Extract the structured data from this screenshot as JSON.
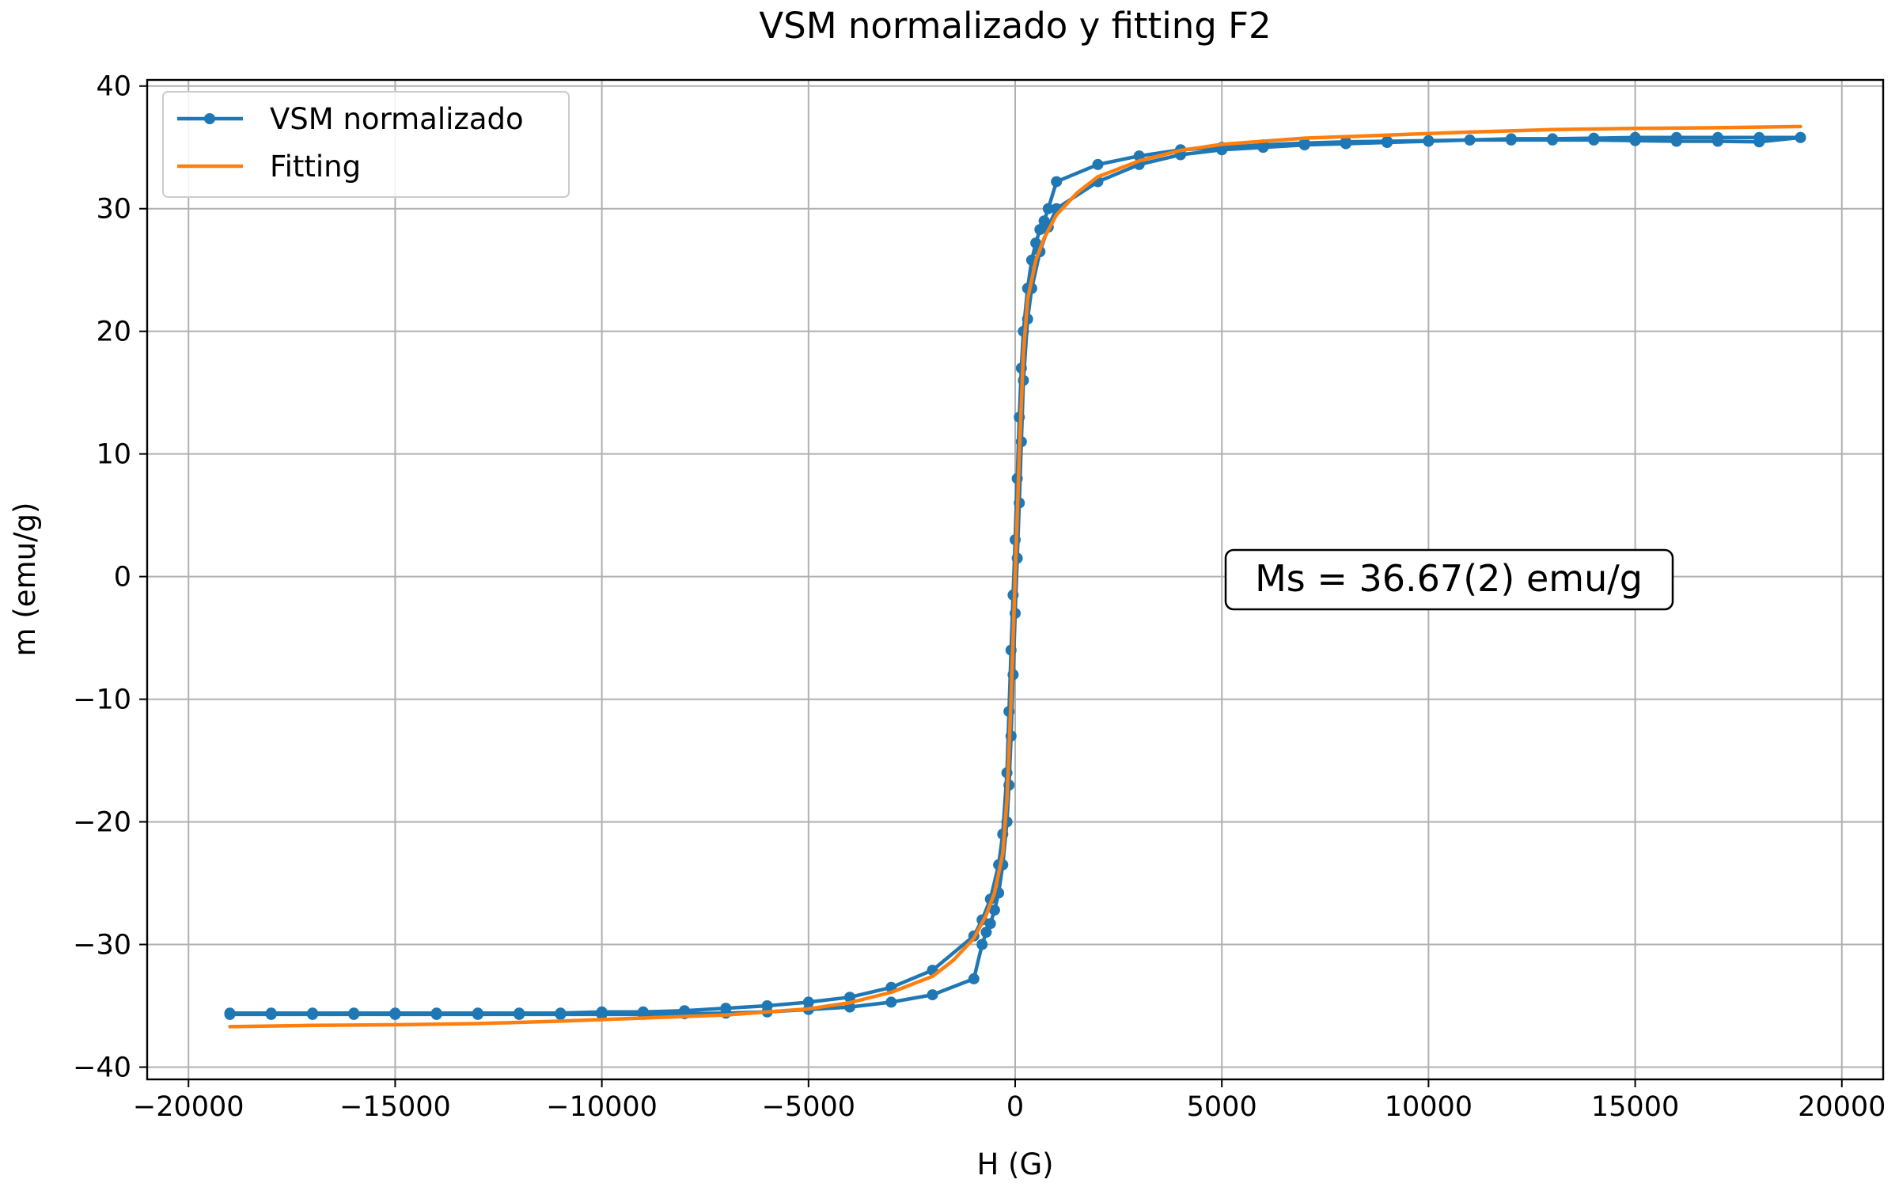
{
  "chart_data": {
    "type": "line",
    "title": "VSM normalizado y fitting F2",
    "xlabel": "H (G)",
    "ylabel": "m (emu/g)",
    "xlim": [
      -21000,
      21000
    ],
    "ylim": [
      -41,
      40.5
    ],
    "xticks": [
      -20000,
      -15000,
      -10000,
      -5000,
      0,
      5000,
      10000,
      15000,
      20000
    ],
    "xtick_labels": [
      "−20000",
      "−15000",
      "−10000",
      "−5000",
      "0",
      "5000",
      "10000",
      "15000",
      "20000"
    ],
    "yticks": [
      -40,
      -30,
      -20,
      -10,
      0,
      10,
      20,
      30,
      40
    ],
    "ytick_labels": [
      "−40",
      "−30",
      "−20",
      "−10",
      "0",
      "10",
      "20",
      "30",
      "40"
    ],
    "grid": true,
    "legend": "top-left",
    "annotation": "Ms = 36.67(2) emu/g",
    "series": [
      {
        "name": "VSM normalizado",
        "color": "#1f77b4",
        "marker": "circle",
        "x": [
          -19000,
          -18000,
          -17000,
          -16000,
          -15000,
          -14000,
          -13000,
          -12000,
          -11000,
          -10000,
          -9000,
          -8000,
          -7000,
          -6000,
          -5000,
          -4000,
          -3000,
          -2000,
          -1000,
          -800,
          -600,
          -400,
          -300,
          -200,
          -150,
          -100,
          -50,
          0,
          50,
          100,
          150,
          200,
          300,
          400,
          500,
          600,
          700,
          800,
          1000,
          2000,
          3000,
          4000,
          5000,
          6000,
          7000,
          8000,
          9000,
          10000,
          11000,
          12000,
          13000,
          14000,
          15000,
          16000,
          17000,
          18000,
          19000,
          19000,
          18000,
          17000,
          16000,
          15000,
          14000,
          13000,
          12000,
          11000,
          10000,
          9000,
          8000,
          7000,
          6000,
          5000,
          4000,
          3000,
          2000,
          1000,
          800,
          600,
          400,
          300,
          200,
          150,
          100,
          50,
          0,
          -50,
          -100,
          -150,
          -200,
          -300,
          -400,
          -500,
          -600,
          -700,
          -800,
          -1000,
          -2000,
          -3000,
          -4000,
          -5000,
          -6000,
          -7000,
          -8000,
          -9000,
          -10000,
          -11000,
          -12000,
          -13000,
          -14000,
          -15000,
          -16000,
          -17000,
          -18000,
          -19000
        ],
        "y": [
          -35.6,
          -35.6,
          -35.6,
          -35.6,
          -35.6,
          -35.6,
          -35.6,
          -35.6,
          -35.6,
          -35.5,
          -35.5,
          -35.4,
          -35.2,
          -35.0,
          -34.7,
          -34.3,
          -33.5,
          -32.1,
          -29.3,
          -28.0,
          -26.3,
          -23.5,
          -21.0,
          -16.0,
          -11.0,
          -6.0,
          -1.5,
          3.0,
          8.0,
          13.0,
          17.0,
          20.0,
          23.5,
          25.8,
          27.2,
          28.3,
          29.0,
          30.0,
          32.2,
          33.6,
          34.3,
          34.8,
          35.0,
          35.2,
          35.35,
          35.45,
          35.5,
          35.55,
          35.6,
          35.6,
          35.6,
          35.6,
          35.55,
          35.5,
          35.5,
          35.45,
          35.8,
          35.8,
          35.8,
          35.8,
          35.8,
          35.8,
          35.75,
          35.7,
          35.7,
          35.6,
          35.5,
          35.4,
          35.3,
          35.2,
          35.0,
          34.8,
          34.4,
          33.6,
          32.2,
          30.0,
          28.5,
          26.5,
          23.5,
          21.0,
          16.0,
          11.0,
          6.0,
          1.5,
          -3.0,
          -8.0,
          -13.0,
          -17.0,
          -20.0,
          -23.5,
          -25.8,
          -27.2,
          -28.3,
          -29.0,
          -30.0,
          -32.8,
          -34.1,
          -34.7,
          -35.1,
          -35.3,
          -35.5,
          -35.6,
          -35.65,
          -35.7,
          -35.7,
          -35.7,
          -35.7,
          -35.7,
          -35.7,
          -35.7,
          -35.7,
          -35.7,
          -35.7,
          -35.7
        ]
      },
      {
        "name": "Fitting",
        "color": "#ff7f0e",
        "x": [
          -19000,
          -17000,
          -15000,
          -13000,
          -11000,
          -9000,
          -7000,
          -5000,
          -4000,
          -3000,
          -2000,
          -1500,
          -1000,
          -700,
          -500,
          -300,
          -200,
          -100,
          0,
          100,
          200,
          300,
          500,
          700,
          1000,
          1500,
          2000,
          3000,
          4000,
          5000,
          7000,
          9000,
          11000,
          13000,
          15000,
          17000,
          19000
        ],
        "y": [
          -36.7,
          -36.6,
          -36.55,
          -36.45,
          -36.25,
          -36.0,
          -35.75,
          -35.25,
          -34.75,
          -33.9,
          -32.6,
          -31.3,
          -29.5,
          -27.6,
          -25.8,
          -22.6,
          -18.2,
          -10.0,
          0.0,
          10.0,
          18.2,
          22.6,
          25.8,
          27.6,
          29.5,
          31.3,
          32.6,
          33.9,
          34.75,
          35.25,
          35.75,
          36.0,
          36.25,
          36.45,
          36.55,
          36.6,
          36.7
        ]
      }
    ]
  }
}
